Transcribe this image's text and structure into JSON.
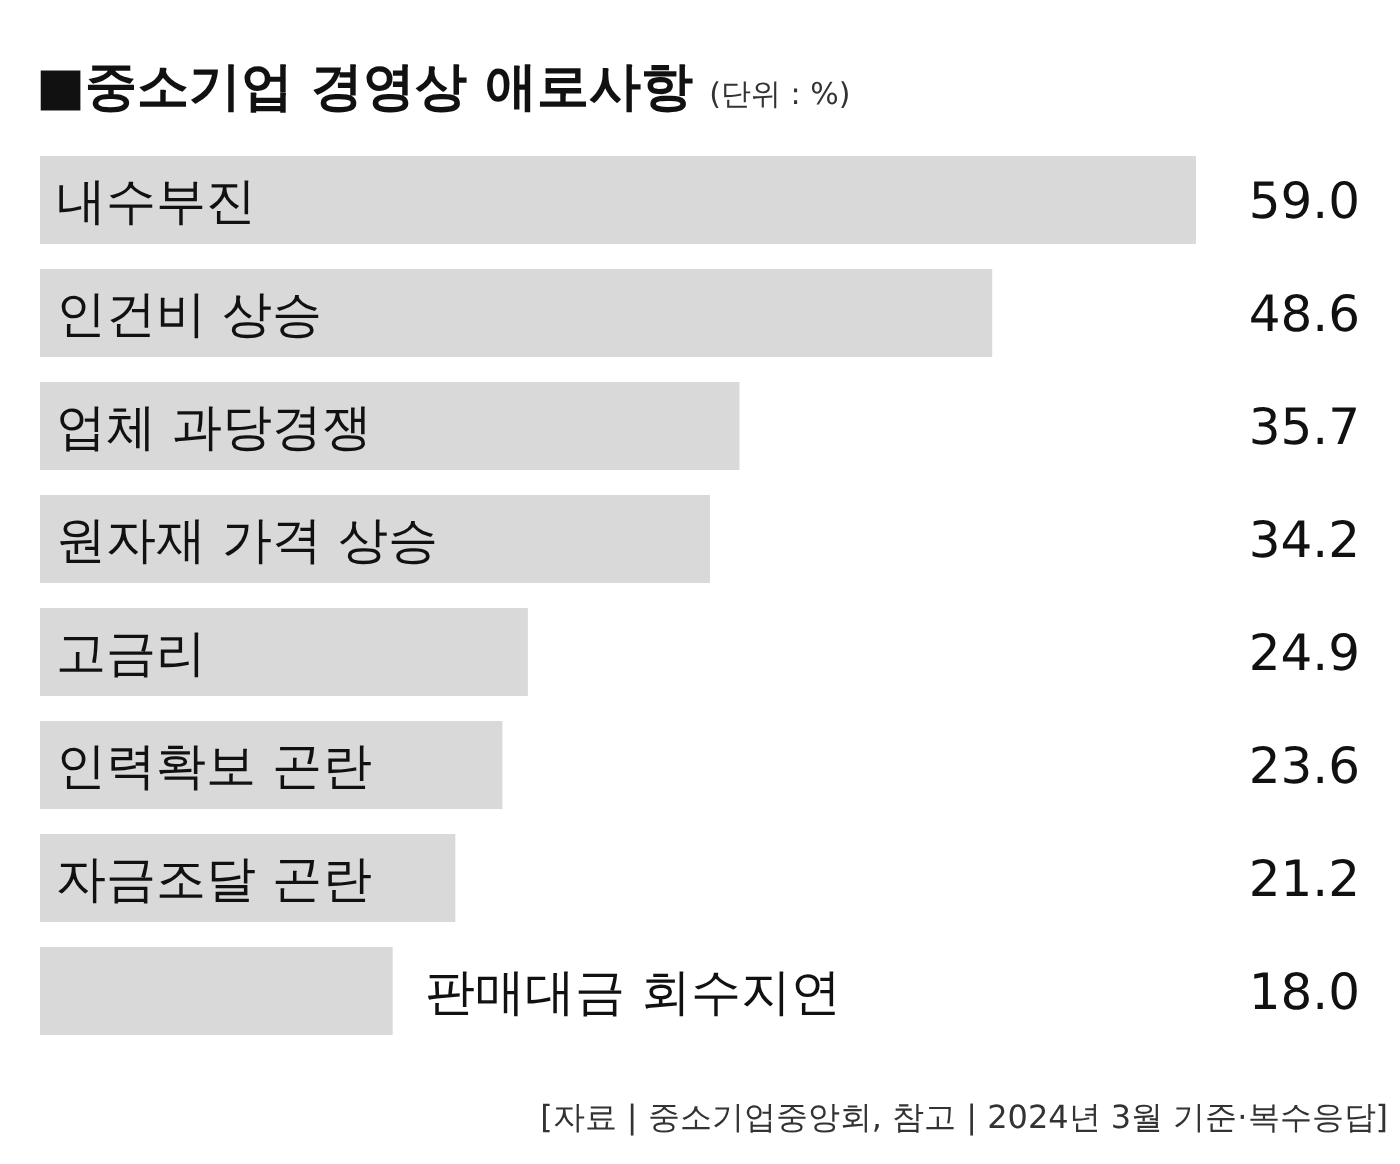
{
  "chart_data": {
    "type": "bar",
    "orientation": "horizontal",
    "title": "■중소기업 경영상 애로사항",
    "subtitle": "(단위 : %)",
    "categories": [
      "내수부진",
      "인건비 상승",
      "업체 과당경쟁",
      "원자재 가격 상승",
      "고금리",
      "인력확보 곤란",
      "자금조달 곤란",
      "판매대금 회수지연"
    ],
    "values": [
      59.0,
      48.6,
      35.7,
      34.2,
      24.9,
      23.6,
      21.2,
      18.0
    ],
    "value_labels": [
      "59.0",
      "48.6",
      "35.7",
      "34.2",
      "24.9",
      "23.6",
      "21.2",
      "18.0"
    ],
    "color": "#d9d9d9",
    "annotations": [
      "[자료 | 중소기업중앙회, 참고 | 2024년 3월 기준·복수응답]"
    ]
  }
}
